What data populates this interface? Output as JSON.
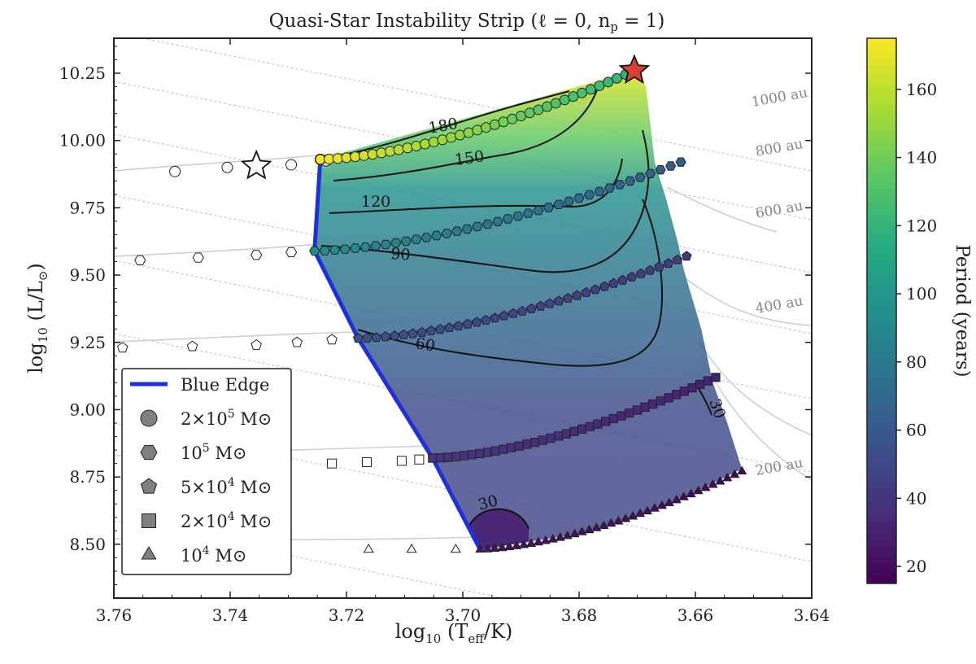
{
  "chart_data": {
    "type": "scatter",
    "title": "Quasi-Star Instability Strip (ℓ = 0, n",
    "title_sub": "p",
    "title_tail": " = 1)",
    "xlabel_main": "log",
    "xlabel_sub": "10",
    "xlabel_rest": " (T",
    "xlabel_rest_sub": "eff",
    "xlabel_end": "/K)",
    "ylabel_main": "log",
    "ylabel_sub": "10",
    "ylabel_rest": " (L/L",
    "ylabel_rest_sub": "⊙",
    "ylabel_end": ")",
    "xlim": [
      3.76,
      3.64
    ],
    "ylim": [
      8.3,
      10.38
    ],
    "x_ticks": [
      "3.76",
      "3.74",
      "3.72",
      "3.70",
      "3.68",
      "3.66",
      "3.64"
    ],
    "x_tick_values": [
      3.76,
      3.74,
      3.72,
      3.7,
      3.68,
      3.66,
      3.64
    ],
    "y_ticks": [
      "8.50",
      "8.75",
      "9.00",
      "9.25",
      "9.50",
      "9.75",
      "10.00",
      "10.25"
    ],
    "y_tick_values": [
      8.5,
      8.75,
      9.0,
      9.25,
      9.5,
      9.75,
      10.0,
      10.25
    ],
    "colorbar": {
      "label": "Period (years)",
      "range": [
        15,
        175
      ],
      "ticks": [
        "20",
        "40",
        "60",
        "80",
        "100",
        "120",
        "140",
        "160"
      ],
      "tick_values": [
        20,
        40,
        60,
        80,
        100,
        120,
        140,
        160
      ],
      "colors": [
        "#440154",
        "#472c7a",
        "#3b518b",
        "#2c718e",
        "#21908d",
        "#27ad81",
        "#5cc863",
        "#aadc32",
        "#fde725"
      ]
    },
    "blue_edge": {
      "name": "Blue Edge",
      "color": "#1f2fe0",
      "points": [
        [
          3.7245,
          9.93
        ],
        [
          3.7255,
          9.59
        ],
        [
          3.718,
          9.265
        ],
        [
          3.7052,
          8.82
        ],
        [
          3.697,
          8.48
        ]
      ]
    },
    "strip_polygon": [
      [
        3.7245,
        9.93
      ],
      [
        3.7255,
        9.59
      ],
      [
        3.718,
        9.265
      ],
      [
        3.7052,
        8.82
      ],
      [
        3.697,
        8.48
      ],
      [
        3.68,
        8.54
      ],
      [
        3.665,
        8.64
      ],
      [
        3.652,
        8.78
      ],
      [
        3.6545,
        8.95
      ],
      [
        3.657,
        9.1
      ],
      [
        3.659,
        9.3
      ],
      [
        3.662,
        9.52
      ],
      [
        3.663,
        9.62
      ],
      [
        3.665,
        9.78
      ],
      [
        3.667,
        9.92
      ],
      [
        3.6685,
        10.2
      ],
      [
        3.6705,
        10.26
      ]
    ],
    "contour_labels": [
      "180",
      "150",
      "120",
      "90",
      "60",
      "30",
      "30"
    ],
    "au_labels": [
      "1000 au",
      "800 au",
      "600 au",
      "400 au",
      "200 au"
    ],
    "tracks": [
      {
        "name": "2×10⁵ M⊙",
        "label_main": "2×10",
        "label_sup": "5",
        "label_unit": " M⊙",
        "marker": "circle",
        "x": [
          3.7495,
          3.7405,
          3.7295,
          3.7235,
          3.7245
        ],
        "y": [
          9.885,
          9.9,
          9.91,
          9.925,
          9.93
        ],
        "strip_start": [
          3.7245,
          9.93
        ],
        "strip_end": [
          3.6705,
          10.26
        ],
        "strip_period": [
          172,
          118
        ]
      },
      {
        "name": "10⁵ M⊙",
        "label_main": "10",
        "label_sup": "5",
        "label_unit": " M⊙",
        "marker": "hexagon",
        "x": [
          3.7555,
          3.7455,
          3.7355,
          3.7295
        ],
        "y": [
          9.555,
          9.565,
          9.575,
          9.585
        ],
        "strip_start": [
          3.7255,
          9.59
        ],
        "strip_end": [
          3.6625,
          9.92
        ],
        "strip_period": [
          95,
          62
        ]
      },
      {
        "name": "5×10⁴ M⊙",
        "label_main": "5×10",
        "label_sup": "4",
        "label_unit": " M⊙",
        "marker": "pentagon",
        "x": [
          3.7585,
          3.7465,
          3.7355,
          3.7285,
          3.7225
        ],
        "y": [
          9.23,
          9.235,
          9.24,
          9.25,
          9.26
        ],
        "strip_start": [
          3.718,
          9.265
        ],
        "strip_end": [
          3.6615,
          9.57
        ],
        "strip_period": [
          55,
          42
        ]
      },
      {
        "name": "2×10⁴ M⊙",
        "label_main": "2×10",
        "label_sup": "4",
        "label_unit": " M⊙",
        "marker": "square",
        "x": [
          3.7225,
          3.7165,
          3.7105,
          3.7075
        ],
        "y": [
          8.8,
          8.805,
          8.81,
          8.815
        ],
        "strip_start": [
          3.7052,
          8.82
        ],
        "strip_end": [
          3.6565,
          9.12
        ],
        "strip_period": [
          40,
          30
        ]
      },
      {
        "name": "10⁴ M⊙",
        "label_main": "10",
        "label_sup": "4",
        "label_unit": " M⊙",
        "marker": "triangle",
        "x": [
          3.7162,
          3.7088,
          3.7012
        ],
        "y": [
          8.48,
          8.48,
          8.48
        ],
        "strip_start": [
          3.697,
          8.48
        ],
        "strip_end": [
          3.652,
          8.77
        ],
        "strip_period": [
          24,
          18
        ]
      }
    ],
    "legend_title_entry": "Blue Edge",
    "red_star": {
      "x": 3.6705,
      "y": 10.26
    },
    "open_star": {
      "x": 3.7355,
      "y": 9.905
    }
  }
}
